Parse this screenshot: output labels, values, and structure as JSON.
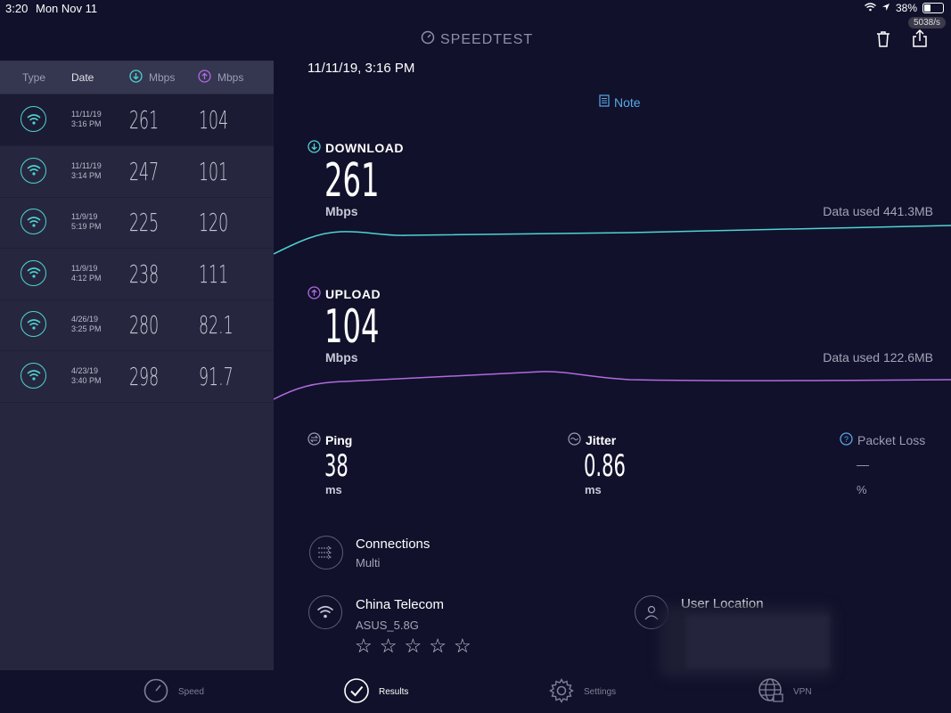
{
  "status_bar": {
    "time": "3:20",
    "date": "Mon Nov 11",
    "battery": "38%",
    "battery_level": 0.38,
    "net_speed": "5038/s"
  },
  "app": {
    "title": "SPEEDTEST"
  },
  "history": {
    "headers": {
      "type": "Type",
      "date": "Date",
      "download": "Mbps",
      "upload": "Mbps"
    },
    "rows": [
      {
        "date": "11/11/19",
        "time": "3:16 PM",
        "download": "261",
        "upload": "104"
      },
      {
        "date": "11/11/19",
        "time": "3:14 PM",
        "download": "247",
        "upload": "101"
      },
      {
        "date": "11/9/19",
        "time": "5:19 PM",
        "download": "225",
        "upload": "120"
      },
      {
        "date": "11/9/19",
        "time": "4:12 PM",
        "download": "238",
        "upload": "111"
      },
      {
        "date": "4/26/19",
        "time": "3:25 PM",
        "download": "280",
        "upload": "82.1"
      },
      {
        "date": "4/23/19",
        "time": "3:40 PM",
        "download": "298",
        "upload": "91.7"
      }
    ]
  },
  "result": {
    "timestamp": "11/11/19, 3:16 PM",
    "note_label": "Note",
    "download": {
      "label": "DOWNLOAD",
      "value": "261",
      "unit": "Mbps",
      "data_used": "Data used 441.3MB",
      "color": "#4fd3d0"
    },
    "upload": {
      "label": "UPLOAD",
      "value": "104",
      "unit": "Mbps",
      "data_used": "Data used 122.6MB",
      "color": "#b06ae0"
    },
    "ping": {
      "label": "Ping",
      "value": "38",
      "unit": "ms"
    },
    "jitter": {
      "label": "Jitter",
      "value": "0.86",
      "unit": "ms"
    },
    "packet_loss": {
      "label": "Packet Loss",
      "value": "—",
      "unit": "%"
    },
    "connections": {
      "title": "Connections",
      "value": "Multi"
    },
    "provider": {
      "name": "China Telecom",
      "network": "ASUS_5.8G",
      "rating_stars": 5
    },
    "location": {
      "title": "User Location"
    }
  },
  "nav": {
    "speed": "Speed",
    "results": "Results",
    "settings": "Settings",
    "vpn": "VPN"
  }
}
